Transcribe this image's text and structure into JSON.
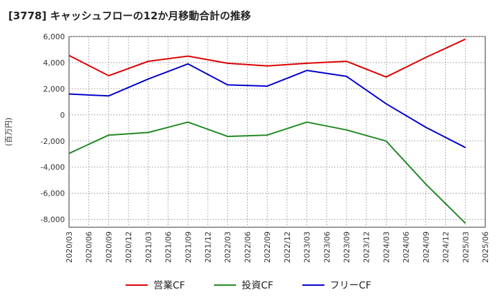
{
  "chart_data": {
    "type": "line",
    "title": "[3778]  キャッシュフローの12か月移動合計の推移",
    "ylabel": "(百万円)",
    "xlabel": "",
    "ylim": [
      -8600,
      6000
    ],
    "yticks": [
      6000,
      4000,
      2000,
      0,
      -2000,
      -4000,
      -6000,
      -8000
    ],
    "ytick_labels": [
      "6,000",
      "4,000",
      "2,000",
      "0",
      "-2,000",
      "-4,000",
      "-6,000",
      "-8,000"
    ],
    "categories": [
      "2020/03",
      "2020/06",
      "2020/09",
      "2020/12",
      "2021/03",
      "2021/06",
      "2021/09",
      "2021/12",
      "2022/03",
      "2022/06",
      "2022/09",
      "2022/12",
      "2023/03",
      "2023/06",
      "2023/09",
      "2023/12",
      "2024/03",
      "2024/06",
      "2024/09",
      "2024/12",
      "2025/03",
      "2025/06"
    ],
    "series": [
      {
        "name": "営業CF",
        "color": "#dd0000",
        "points": [
          [
            "2020/03",
            4550
          ],
          [
            "2020/09",
            3000
          ],
          [
            "2021/03",
            4100
          ],
          [
            "2021/09",
            4500
          ],
          [
            "2022/03",
            3950
          ],
          [
            "2022/09",
            3750
          ],
          [
            "2023/03",
            3950
          ],
          [
            "2023/09",
            4100
          ],
          [
            "2024/03",
            2900
          ],
          [
            "2024/09",
            4400
          ],
          [
            "2025/03",
            5800
          ]
        ]
      },
      {
        "name": "投資CF",
        "color": "#228822",
        "points": [
          [
            "2020/03",
            -2950
          ],
          [
            "2020/09",
            -1550
          ],
          [
            "2021/03",
            -1350
          ],
          [
            "2021/09",
            -550
          ],
          [
            "2022/03",
            -1650
          ],
          [
            "2022/09",
            -1550
          ],
          [
            "2023/03",
            -550
          ],
          [
            "2023/09",
            -1150
          ],
          [
            "2024/03",
            -2000
          ],
          [
            "2024/09",
            -5300
          ],
          [
            "2025/03",
            -8300
          ]
        ]
      },
      {
        "name": "フリーCF",
        "color": "#0000cc",
        "points": [
          [
            "2020/03",
            1600
          ],
          [
            "2020/09",
            1450
          ],
          [
            "2021/03",
            2750
          ],
          [
            "2021/09",
            3900
          ],
          [
            "2022/03",
            2300
          ],
          [
            "2022/09",
            2200
          ],
          [
            "2023/03",
            3400
          ],
          [
            "2023/09",
            2950
          ],
          [
            "2024/03",
            850
          ],
          [
            "2024/09",
            -950
          ],
          [
            "2025/03",
            -2500
          ]
        ]
      }
    ],
    "legend_position": "bottom",
    "grid": true
  }
}
